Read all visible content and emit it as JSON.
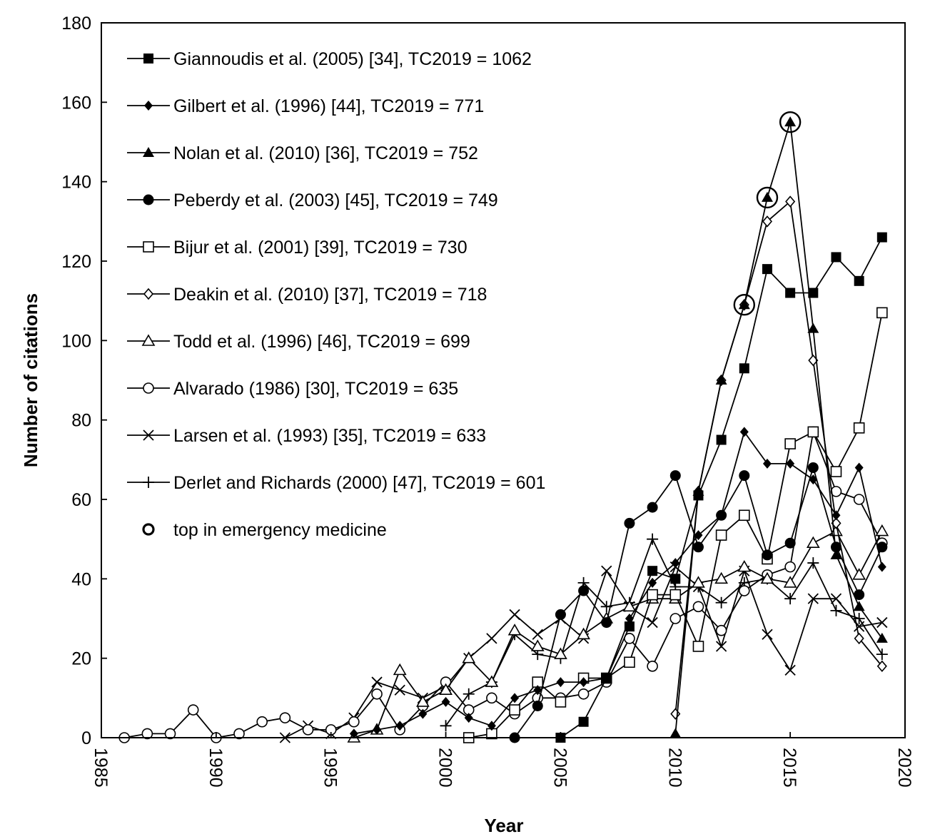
{
  "chart_data": {
    "type": "line",
    "title": "",
    "xlabel": "Year",
    "ylabel": "Number of citations",
    "xlim": [
      1985,
      2020
    ],
    "ylim": [
      0,
      180
    ],
    "xticks": [
      "1985",
      "1990",
      "1995",
      "2000",
      "2005",
      "2010",
      "2015",
      "2020"
    ],
    "yticks": [
      "0",
      "20",
      "40",
      "60",
      "80",
      "100",
      "120",
      "140",
      "160",
      "180"
    ],
    "grid": false,
    "legend_position": "top-left",
    "series": [
      {
        "name": "Giannoudis et al. (2005) [34], TC2019 = 1062",
        "marker": "square-filled",
        "x": [
          2005,
          2006,
          2007,
          2008,
          2009,
          2010,
          2011,
          2012,
          2013,
          2014,
          2015,
          2016,
          2017,
          2018,
          2019
        ],
        "y": [
          0,
          4,
          15,
          28,
          42,
          40,
          61,
          75,
          93,
          118,
          112,
          112,
          121,
          115,
          126
        ]
      },
      {
        "name": "Gilbert et al. (1996) [44], TC2019 = 771",
        "marker": "diamond-filled",
        "x": [
          1996,
          1997,
          1998,
          1999,
          2000,
          2001,
          2002,
          2003,
          2004,
          2005,
          2006,
          2007,
          2008,
          2009,
          2010,
          2011,
          2012,
          2013,
          2014,
          2015,
          2016,
          2017,
          2018,
          2019
        ],
        "y": [
          1,
          2,
          3,
          6,
          9,
          5,
          3,
          10,
          12,
          14,
          14,
          15,
          30,
          39,
          44,
          51,
          56,
          77,
          69,
          69,
          65,
          56,
          68,
          43
        ]
      },
      {
        "name": "Nolan et al. (2010) [36], TC2019 = 752",
        "marker": "triangle-filled",
        "x": [
          2010,
          2011,
          2012,
          2013,
          2014,
          2015,
          2016,
          2017,
          2018,
          2019
        ],
        "y": [
          1,
          62,
          90,
          109,
          136,
          155,
          103,
          46,
          33,
          25
        ]
      },
      {
        "name": "Peberdy et al. (2003) [45], TC2019 = 749",
        "marker": "circle-filled",
        "x": [
          2003,
          2004,
          2005,
          2006,
          2007,
          2008,
          2009,
          2010,
          2011,
          2012,
          2013,
          2014,
          2015,
          2016,
          2017,
          2018,
          2019
        ],
        "y": [
          0,
          8,
          31,
          37,
          29,
          54,
          58,
          66,
          48,
          56,
          66,
          46,
          49,
          68,
          48,
          36,
          48
        ]
      },
      {
        "name": "Bijur et al. (2001) [39], TC2019 = 730",
        "marker": "square-open",
        "x": [
          2001,
          2002,
          2003,
          2004,
          2005,
          2006,
          2007,
          2008,
          2009,
          2010,
          2011,
          2012,
          2013,
          2014,
          2015,
          2016,
          2017,
          2018,
          2019
        ],
        "y": [
          0,
          1,
          7,
          14,
          9,
          15,
          15,
          19,
          36,
          36,
          23,
          51,
          56,
          45,
          74,
          77,
          67,
          78,
          107
        ]
      },
      {
        "name": "Deakin et al. (2010) [37], TC2019 = 718",
        "marker": "diamond-open",
        "x": [
          2010,
          2011,
          2012,
          2013,
          2014,
          2015,
          2016,
          2017,
          2018,
          2019
        ],
        "y": [
          6,
          62,
          90,
          109,
          130,
          135,
          95,
          54,
          25,
          18
        ]
      },
      {
        "name": "Todd et al. (1996) [46], TC2019 = 699",
        "marker": "triangle-open",
        "x": [
          1996,
          1997,
          1998,
          1999,
          2000,
          2001,
          2002,
          2003,
          2004,
          2005,
          2006,
          2007,
          2008,
          2009,
          2010,
          2011,
          2012,
          2013,
          2014,
          2015,
          2016,
          2017,
          2018,
          2019
        ],
        "y": [
          0,
          2,
          17,
          9,
          12,
          20,
          14,
          27,
          23,
          21,
          26,
          30,
          33,
          35,
          35,
          39,
          40,
          43,
          40,
          39,
          49,
          52,
          41,
          52
        ]
      },
      {
        "name": "Alvarado (1986) [30], TC2019 = 635",
        "marker": "circle-open",
        "x": [
          1986,
          1987,
          1988,
          1989,
          1990,
          1991,
          1992,
          1993,
          1994,
          1995,
          1996,
          1997,
          1998,
          1999,
          2000,
          2001,
          2002,
          2003,
          2004,
          2005,
          2006,
          2007,
          2008,
          2009,
          2010,
          2011,
          2012,
          2013,
          2014,
          2015,
          2016,
          2017,
          2018,
          2019
        ],
        "y": [
          0,
          1,
          1,
          7,
          0,
          1,
          4,
          5,
          2,
          2,
          4,
          11,
          2,
          8,
          14,
          7,
          10,
          6,
          10,
          10,
          11,
          14,
          25,
          18,
          30,
          33,
          27,
          37,
          41,
          43,
          77,
          62,
          60,
          49
        ]
      },
      {
        "name": "Larsen et al. (1993) [35], TC2019 = 633",
        "marker": "x",
        "x": [
          1993,
          1994,
          1995,
          1996,
          1997,
          1998,
          1999,
          2000,
          2001,
          2002,
          2003,
          2004,
          2005,
          2006,
          2007,
          2008,
          2009,
          2010,
          2011,
          2012,
          2013,
          2014,
          2015,
          2016,
          2017,
          2018,
          2019
        ],
        "y": [
          0,
          3,
          1,
          5,
          14,
          12,
          10,
          13,
          20,
          25,
          31,
          26,
          30,
          25,
          42,
          33,
          29,
          43,
          38,
          23,
          42,
          26,
          17,
          35,
          35,
          28,
          29
        ]
      },
      {
        "name": "Derlet and Richards (2000) [47], TC2019 = 601",
        "marker": "plus",
        "x": [
          2000,
          2001,
          2002,
          2003,
          2004,
          2005,
          2006,
          2007,
          2008,
          2009,
          2010,
          2011,
          2012,
          2013,
          2014,
          2015,
          2016,
          2017,
          2018,
          2019
        ],
        "y": [
          3,
          11,
          14,
          26,
          21,
          20,
          39,
          33,
          34,
          50,
          38,
          38,
          34,
          39,
          40,
          35,
          44,
          32,
          30,
          21
        ]
      }
    ],
    "highlight": {
      "name": "top in emergency medicine",
      "marker": "circle-open-large",
      "points": [
        {
          "x": 2013,
          "y": 109
        },
        {
          "x": 2014,
          "y": 136
        },
        {
          "x": 2015,
          "y": 155
        }
      ]
    }
  }
}
